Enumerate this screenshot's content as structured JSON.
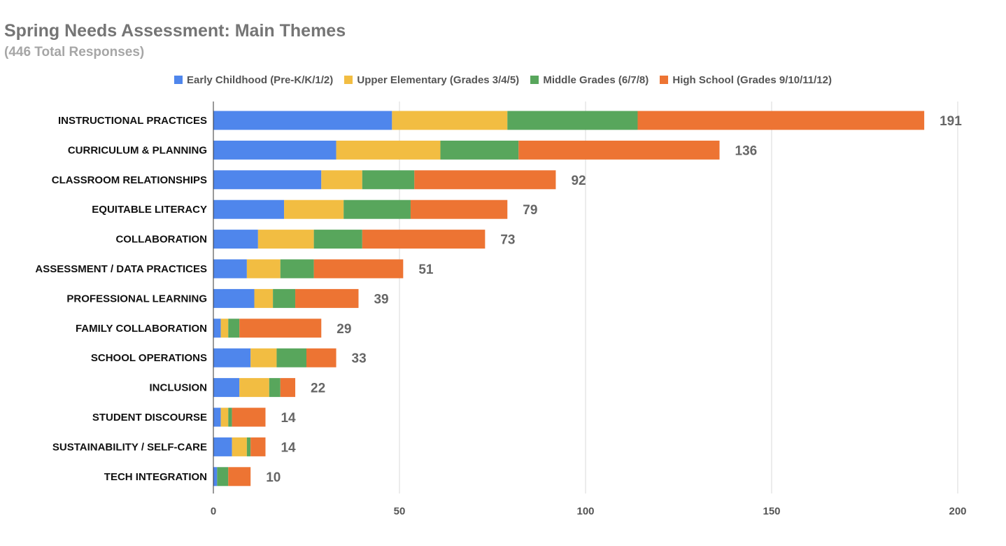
{
  "chart_data": {
    "type": "bar",
    "orientation": "horizontal",
    "stacked": true,
    "title": "Spring Needs Assessment: Main Themes",
    "subtitle": "(446 Total Responses)",
    "categories": [
      "INSTRUCTIONAL PRACTICES",
      "CURRICULUM & PLANNING",
      "CLASSROOM RELATIONSHIPS",
      "EQUITABLE LITERACY",
      "COLLABORATION",
      "ASSESSMENT / DATA PRACTICES",
      "PROFESSIONAL LEARNING",
      "FAMILY COLLABORATION",
      "SCHOOL OPERATIONS",
      "INCLUSION",
      "STUDENT DISCOURSE",
      "SUSTAINABILITY / SELF-CARE",
      "TECH INTEGRATION"
    ],
    "series": [
      {
        "name": "Early Childhood (Pre-K/K/1/2)",
        "color": "#4f86ec",
        "values": [
          48,
          33,
          29,
          19,
          12,
          9,
          11,
          2,
          10,
          7,
          2,
          5,
          1
        ]
      },
      {
        "name": "Upper Elementary (Grades 3/4/5)",
        "color": "#f2bd42",
        "values": [
          31,
          28,
          11,
          16,
          15,
          9,
          5,
          2,
          7,
          8,
          2,
          4,
          0
        ]
      },
      {
        "name": "Middle Grades (6/7/8)",
        "color": "#58a65c",
        "values": [
          35,
          21,
          14,
          18,
          13,
          9,
          6,
          3,
          8,
          3,
          1,
          1,
          3
        ]
      },
      {
        "name": "High School (Grades 9/10/11/12)",
        "color": "#ed7433",
        "values": [
          77,
          54,
          38,
          26,
          33,
          24,
          17,
          22,
          8,
          4,
          9,
          4,
          6
        ]
      }
    ],
    "totals": [
      191,
      136,
      92,
      79,
      73,
      51,
      39,
      29,
      33,
      22,
      14,
      14,
      10
    ],
    "xlim": [
      0,
      200
    ],
    "x_ticks": [
      "0",
      "50",
      "100",
      "150",
      "200"
    ],
    "grid": true,
    "legend_position": "top"
  }
}
